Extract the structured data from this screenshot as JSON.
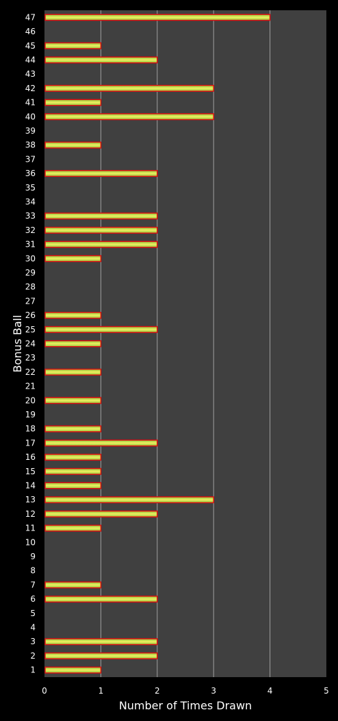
{
  "chart_data": {
    "type": "bar",
    "orientation": "horizontal",
    "xlabel": "Number of Times Drawn",
    "ylabel": "Bonus Ball",
    "xlim": [
      0,
      5
    ],
    "xticks": [
      0,
      1,
      2,
      3,
      4,
      5
    ],
    "grid": "vertical",
    "categories": [
      "1",
      "2",
      "3",
      "4",
      "5",
      "6",
      "7",
      "8",
      "9",
      "10",
      "11",
      "12",
      "13",
      "14",
      "15",
      "16",
      "17",
      "18",
      "19",
      "20",
      "21",
      "22",
      "23",
      "24",
      "25",
      "26",
      "27",
      "28",
      "29",
      "30",
      "31",
      "32",
      "33",
      "34",
      "35",
      "36",
      "37",
      "38",
      "39",
      "40",
      "41",
      "42",
      "43",
      "44",
      "45",
      "46",
      "47"
    ],
    "values": [
      1,
      2,
      2,
      0,
      0,
      2,
      1,
      0,
      0,
      0,
      1,
      2,
      3,
      1,
      1,
      1,
      2,
      1,
      0,
      1,
      0,
      1,
      0,
      1,
      2,
      1,
      0,
      0,
      0,
      1,
      2,
      2,
      2,
      0,
      0,
      2,
      0,
      1,
      0,
      3,
      1,
      3,
      0,
      2,
      1,
      0,
      4
    ]
  },
  "colors": {
    "background": "#000000",
    "plot_area": "#404040",
    "gridline": "#a0a0a0",
    "bar_fill_center": "#f0f060",
    "bar_fill_edge": "#8cc43c",
    "bar_border": "#e01010",
    "text": "#ffffff"
  }
}
